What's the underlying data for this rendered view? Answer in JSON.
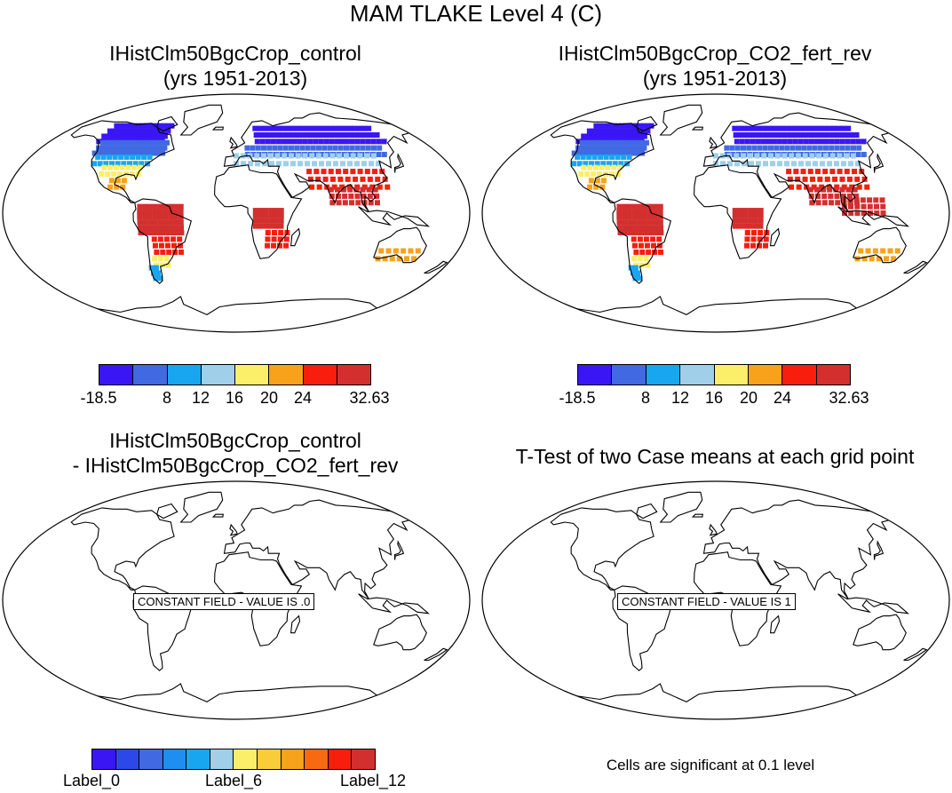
{
  "main_title": "MAM TLAKE Level 4 (C)",
  "panels": [
    {
      "title_line1": "IHistClm50BgcCrop_control",
      "title_line2": "(yrs 1951-2013)",
      "kind": "field"
    },
    {
      "title_line1": "IHistClm50BgcCrop_CO2_fert_rev",
      "title_line2": "(yrs 1951-2013)",
      "kind": "field"
    },
    {
      "title_line1": "IHistClm50BgcCrop_control",
      "title_line2": "- IHistClm50BgcCrop_CO2_fert_rev",
      "kind": "constant",
      "constant_text": "CONSTANT FIELD - VALUE IS .0"
    },
    {
      "title_line1": "T-Test of two Case means at each grid point",
      "title_line2": "",
      "kind": "constant",
      "constant_text": "CONSTANT FIELD - VALUE IS 1"
    }
  ],
  "colorbar_top": {
    "colors": [
      "#3a16f5",
      "#4169e1",
      "#18a6f0",
      "#9fcfe9",
      "#fbef6a",
      "#f7a21a",
      "#f81d0d",
      "#d32f2f"
    ],
    "labels": [
      "-18.5",
      "8",
      "12",
      "16",
      "20",
      "24",
      "32.63"
    ]
  },
  "colorbar_bottom": {
    "colors": [
      "#3a16f5",
      "#2d48e8",
      "#4169e1",
      "#1e8ff0",
      "#18a6f0",
      "#9fcfe9",
      "#fbef6a",
      "#fbcc3a",
      "#f7a21a",
      "#f86a12",
      "#f81d0d",
      "#d32f2f"
    ],
    "labels": [
      "Label_0",
      "Label_6",
      "Label_12"
    ]
  },
  "note": "Cells are significant at 0.1 level"
}
